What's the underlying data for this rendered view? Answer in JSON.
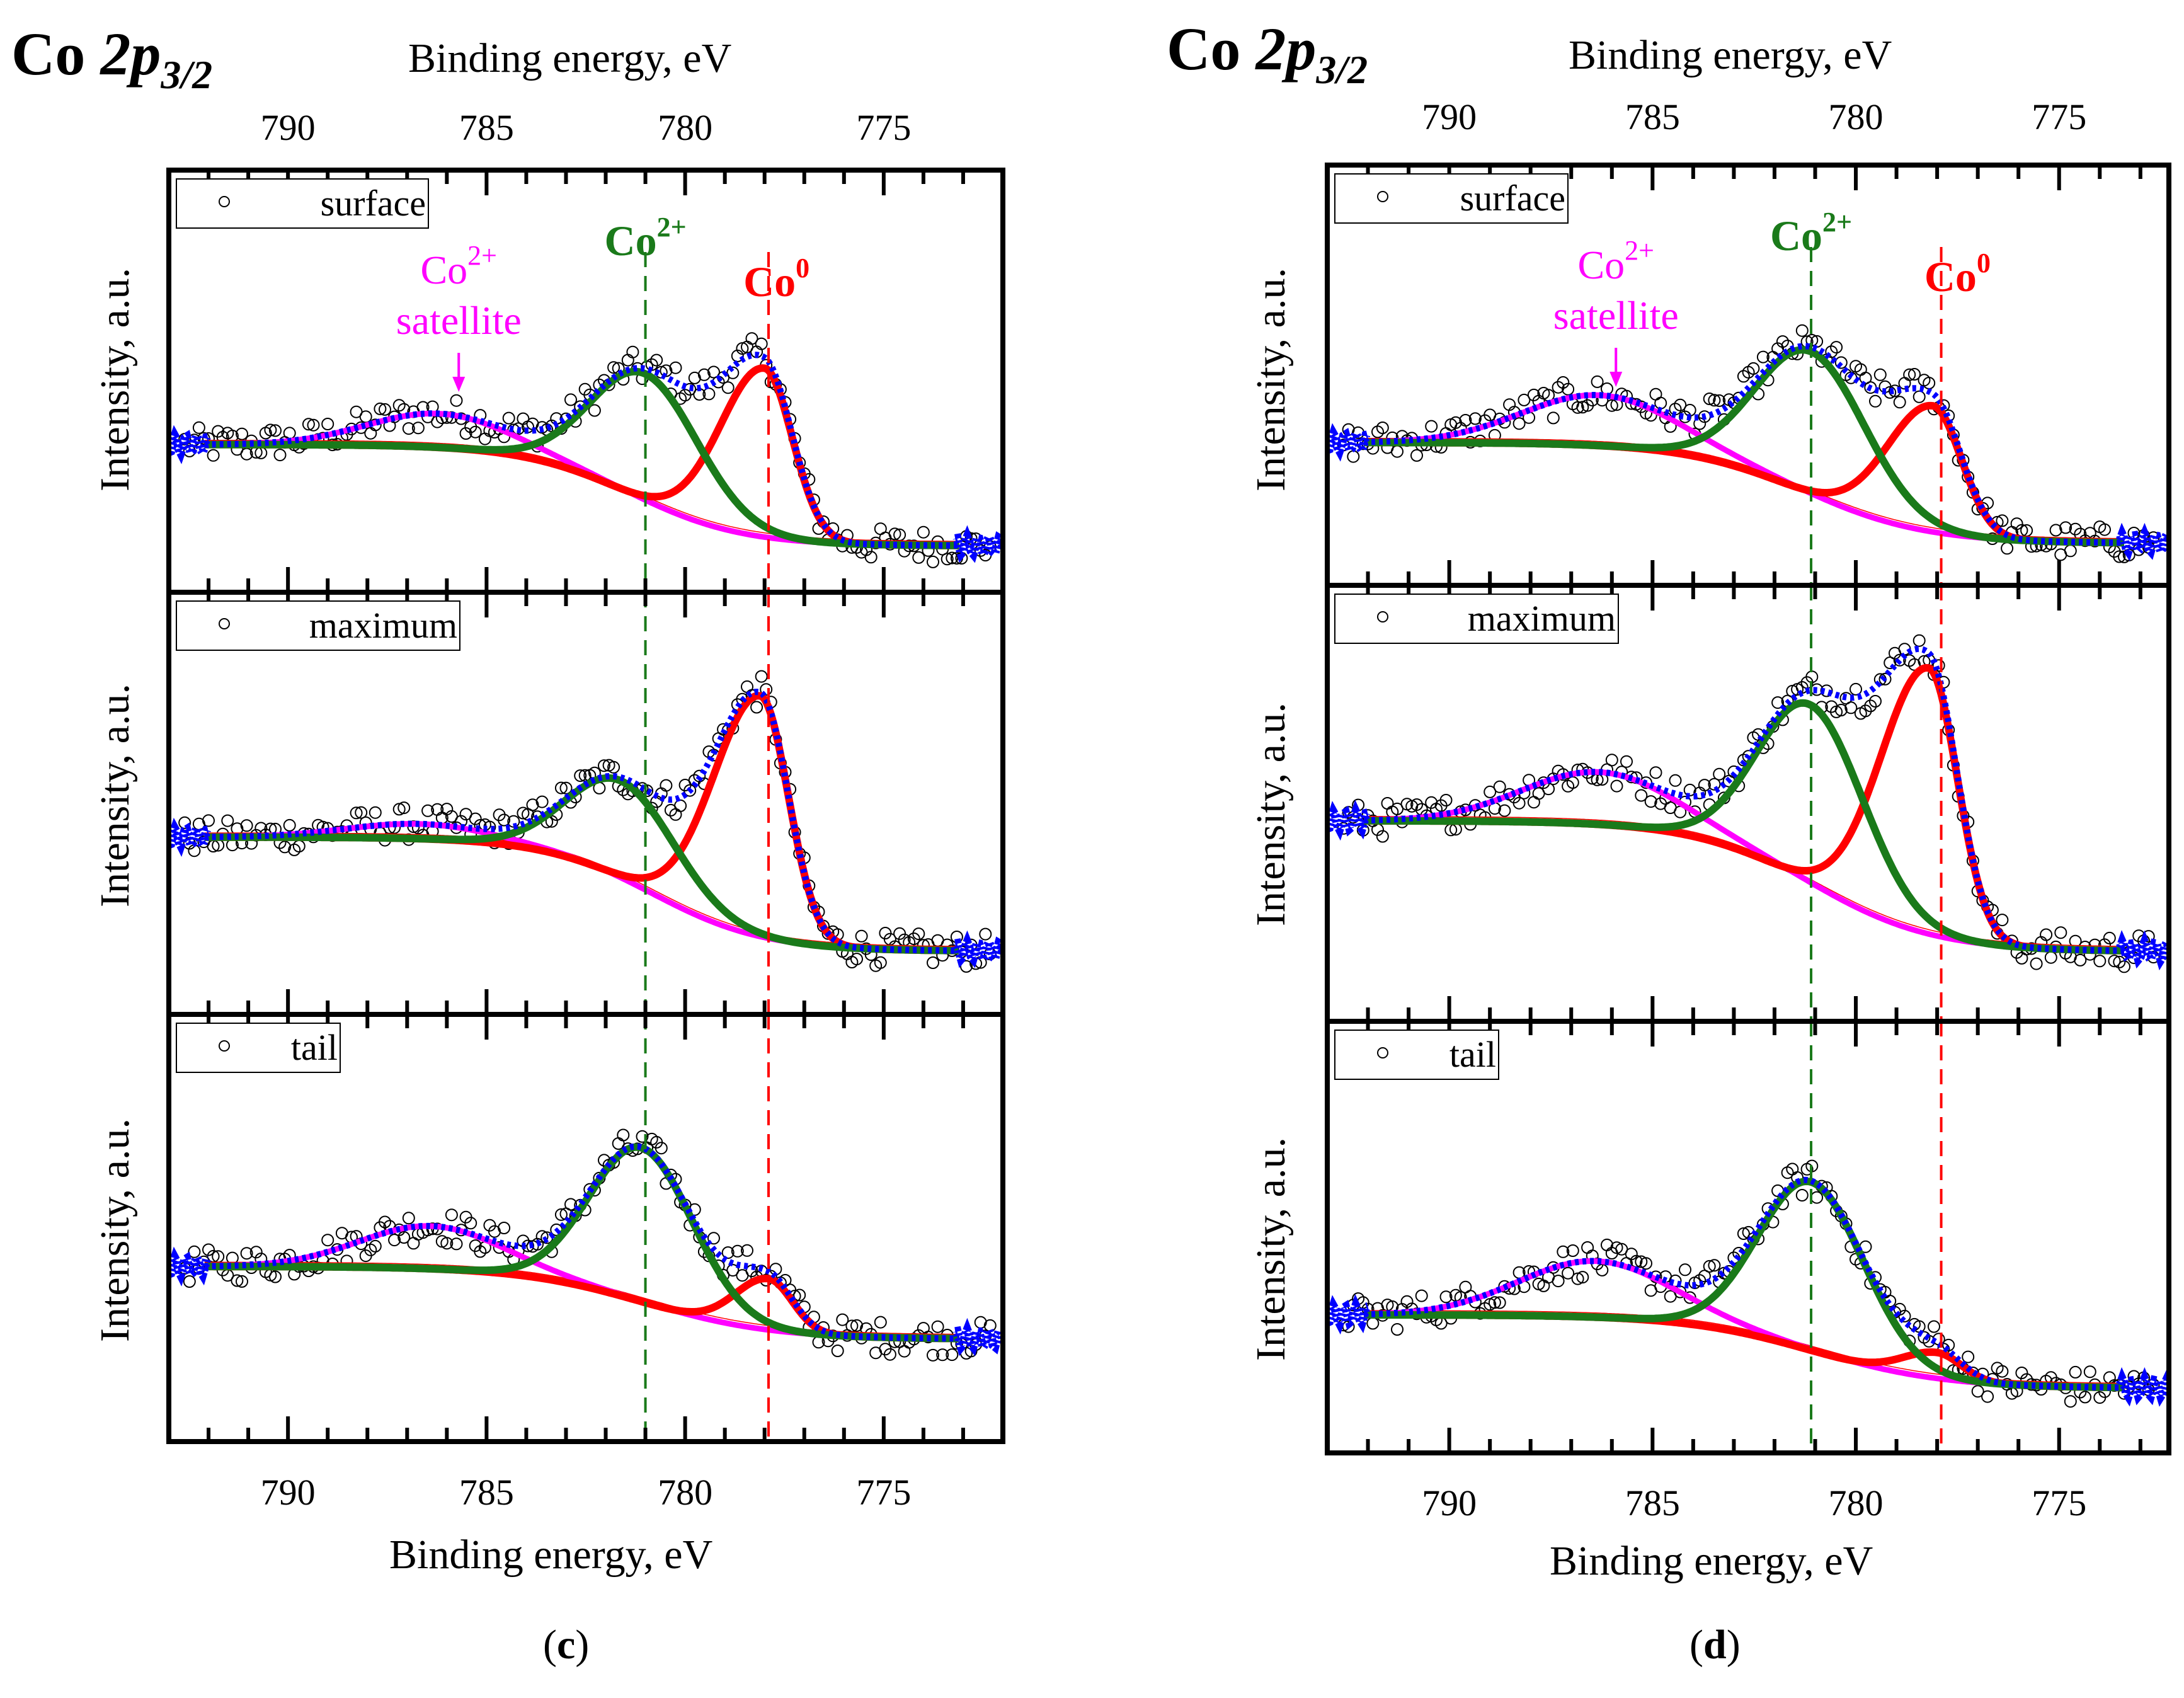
{
  "figure": {
    "captions": [
      "c",
      "d"
    ]
  },
  "chart_data": [
    {
      "id": "c",
      "type": "line",
      "title": "Co 2p3/2",
      "title_parts": {
        "element": "Co ",
        "orbital": "2p",
        "subscript": "3/2"
      },
      "xlabel": "Binding energy, eV",
      "ylabel": "Intensity, a.u.",
      "x_reversed": true,
      "xlim": [
        793.0,
        772.0
      ],
      "xticks": [
        790,
        785,
        780,
        775
      ],
      "x_minor_step": 1,
      "ylim": [
        0,
        1
      ],
      "reference_lines": [
        {
          "label": "Co2+",
          "energy": 781.0,
          "color": "#1a7a1a",
          "style": "dashed"
        },
        {
          "label": "Co0",
          "energy": 777.9,
          "color": "#ff0000",
          "style": "dashed"
        }
      ],
      "annotations": [
        {
          "text": "Co",
          "sup": "2+",
          "color": "#1a7a1a",
          "bold": true,
          "energy": 781.0
        },
        {
          "text": "Co",
          "sup": "0",
          "color": "#ff0000",
          "bold": true,
          "energy": 777.7
        },
        {
          "text": "Co",
          "sup": "2+",
          "line2": "satellite",
          "color": "#ff00ff",
          "bold": false,
          "energy": 785.7,
          "arrow": true
        }
      ],
      "series_colors": {
        "data": "#000000",
        "envelope": "#0000ff",
        "co0": "#ff0000",
        "co2": "#1a7a1a",
        "satellite": "#ff00ff",
        "background": "#000000"
      },
      "panels": [
        {
          "legend": "surface",
          "background": {
            "high": 0.35,
            "low": 0.11,
            "center": 781.3,
            "width": 1.4
          },
          "peaks": {
            "co2": {
              "center": 781.0,
              "height": 0.3,
              "sigma": 1.35
            },
            "co0": {
              "center": 778.0,
              "height": 0.4,
              "sigma": 0.7,
              "tail": 1.6
            },
            "satellite": {
              "center": 786.2,
              "height": 0.08,
              "sigma": 1.8
            }
          }
        },
        {
          "legend": "maximum",
          "background": {
            "high": 0.42,
            "low": 0.15,
            "center": 780.8,
            "width": 1.4
          },
          "peaks": {
            "co2": {
              "center": 781.6,
              "height": 0.23,
              "sigma": 1.35
            },
            "co0": {
              "center": 778.1,
              "height": 0.57,
              "sigma": 0.7,
              "tail": 1.7
            },
            "satellite": {
              "center": 786.7,
              "height": 0.035,
              "sigma": 1.8
            }
          }
        },
        {
          "legend": "tail",
          "background": {
            "high": 0.41,
            "low": 0.24,
            "center": 781.0,
            "width": 1.6
          },
          "peaks": {
            "co2": {
              "center": 781.1,
              "height": 0.36,
              "sigma": 1.3
            },
            "co0": {
              "center": 777.9,
              "height": 0.12,
              "sigma": 0.6,
              "tail": 1.4
            },
            "satellite": {
              "center": 786.4,
              "height": 0.1,
              "sigma": 1.8
            }
          }
        }
      ]
    },
    {
      "id": "d",
      "type": "line",
      "title": "Co 2p3/2",
      "title_parts": {
        "element": "Co ",
        "orbital": "2p",
        "subscript": "3/2"
      },
      "xlabel": "Binding energy, eV",
      "ylabel": "Intensity, a.u.",
      "x_reversed": true,
      "xlim": [
        793.0,
        772.3
      ],
      "xticks": [
        790,
        785,
        780,
        775
      ],
      "x_minor_step": 1,
      "ylim": [
        0,
        1
      ],
      "reference_lines": [
        {
          "label": "Co2+",
          "energy": 781.1,
          "color": "#1a7a1a",
          "style": "dashed"
        },
        {
          "label": "Co0",
          "energy": 777.9,
          "color": "#ff0000",
          "style": "dashed"
        }
      ],
      "annotations": [
        {
          "text": "Co",
          "sup": "2+",
          "color": "#1a7a1a",
          "bold": true,
          "energy": 781.1
        },
        {
          "text": "Co",
          "sup": "0",
          "color": "#ff0000",
          "bold": true,
          "energy": 777.5
        },
        {
          "text": "Co",
          "sup": "2+",
          "line2": "satellite",
          "color": "#ff00ff",
          "bold": false,
          "energy": 785.9,
          "arrow": true
        }
      ],
      "series_colors": {
        "data": "#000000",
        "envelope": "#0000ff",
        "co0": "#ff0000",
        "co2": "#1a7a1a",
        "satellite": "#ff00ff",
        "background": "#000000"
      },
      "panels": [
        {
          "legend": "surface",
          "background": {
            "high": 0.34,
            "low": 0.1,
            "center": 781.2,
            "width": 1.5
          },
          "peaks": {
            "co2": {
              "center": 781.1,
              "height": 0.34,
              "sigma": 1.35
            },
            "co0": {
              "center": 778.1,
              "height": 0.3,
              "sigma": 0.7,
              "tail": 1.6
            },
            "satellite": {
              "center": 786.3,
              "height": 0.12,
              "sigma": 1.9
            }
          }
        },
        {
          "legend": "maximum",
          "background": {
            "high": 0.46,
            "low": 0.16,
            "center": 781.0,
            "width": 1.5
          },
          "peaks": {
            "co2": {
              "center": 781.1,
              "height": 0.41,
              "sigma": 1.3
            },
            "co0": {
              "center": 778.2,
              "height": 0.61,
              "sigma": 0.7,
              "tail": 1.7
            },
            "satellite": {
              "center": 786.3,
              "height": 0.12,
              "sigma": 1.9
            }
          }
        },
        {
          "legend": "tail",
          "background": {
            "high": 0.32,
            "low": 0.15,
            "center": 781.0,
            "width": 1.6
          },
          "peaks": {
            "co2": {
              "center": 781.1,
              "height": 0.39,
              "sigma": 1.3
            },
            "co0": {
              "center": 778.0,
              "height": 0.06,
              "sigma": 0.6,
              "tail": 1.4
            },
            "satellite": {
              "center": 786.4,
              "height": 0.13,
              "sigma": 1.9
            }
          }
        }
      ]
    }
  ]
}
